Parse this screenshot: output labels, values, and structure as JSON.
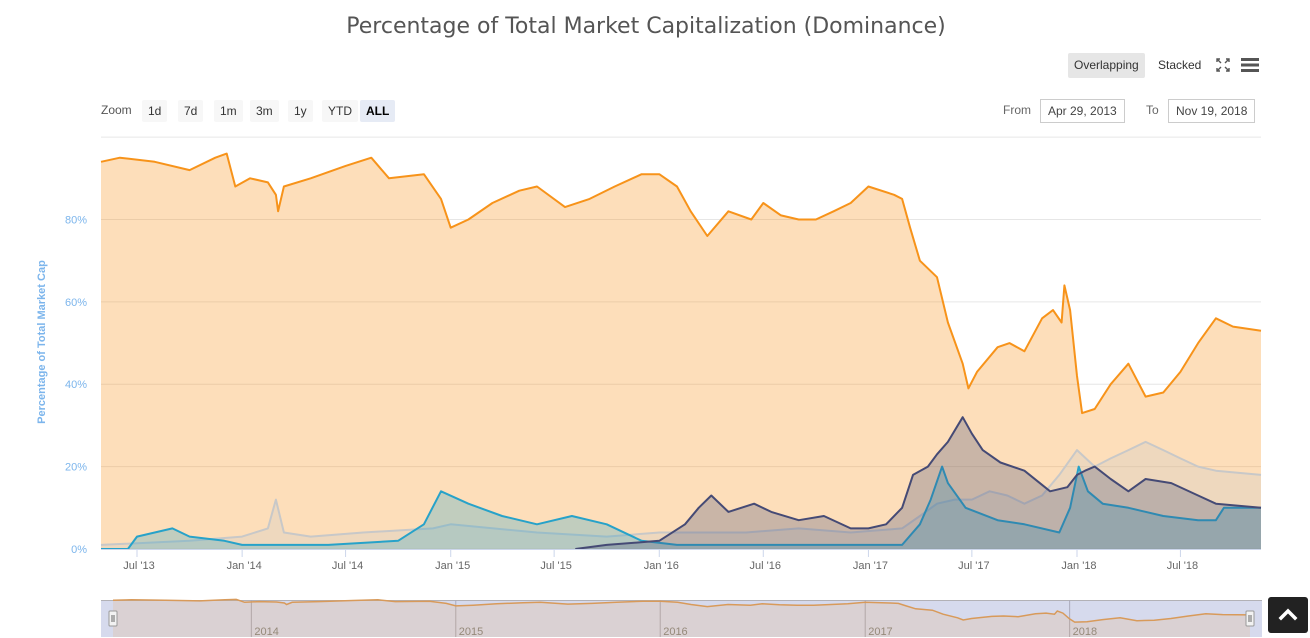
{
  "header": {
    "title": "Percentage of Total Market Capitalization (Dominance)"
  },
  "mode_buttons": [
    {
      "label": "Overlapping",
      "active": true
    },
    {
      "label": "Stacked",
      "active": false
    }
  ],
  "icons": {
    "fullscreen": "fullscreen-icon",
    "menu": "hamburger-menu-icon",
    "scroll_top": "chevron-up-icon"
  },
  "zoom": {
    "label": "Zoom",
    "buttons": [
      {
        "label": "1d",
        "active": false
      },
      {
        "label": "7d",
        "active": false
      },
      {
        "label": "1m",
        "active": false
      },
      {
        "label": "3m",
        "active": false
      },
      {
        "label": "1y",
        "active": false
      },
      {
        "label": "YTD",
        "active": false
      },
      {
        "label": "ALL",
        "active": true
      }
    ]
  },
  "range": {
    "from_label": "From",
    "from_value": "Apr 29, 2013",
    "to_label": "To",
    "to_value": "Nov 19, 2018"
  },
  "colors": {
    "bitcoin": "#f7931a",
    "ethereum": "#454a75",
    "ripple": "#27a2c9",
    "others": "#c8c8c8",
    "axis_label": "#7cb5ec",
    "navigator_fill": "#c5cbe5"
  },
  "chart_data": {
    "type": "area",
    "title": "Percentage of Total Market Capitalization (Dominance)",
    "ylabel": "Percentage of Total Market Cap",
    "xlabel": "",
    "ylim": [
      0,
      100
    ],
    "yticks": [
      "0%",
      "20%",
      "40%",
      "60%",
      "80%"
    ],
    "xticks": [
      "Jul '13",
      "Jan '14",
      "Jul '14",
      "Jan '15",
      "Jul '15",
      "Jan '16",
      "Jul '16",
      "Jan '17",
      "Jul '17",
      "Jan '18",
      "Jul '18"
    ],
    "navigator_labels": [
      "2014",
      "2015",
      "2016",
      "2017",
      "2018"
    ],
    "grid": true,
    "legend": "none",
    "x_start": "2013-04-29",
    "x_end": "2018-11-19",
    "series": [
      {
        "key": "bitcoin",
        "points": [
          [
            "2013-04-29",
            94
          ],
          [
            "2013-06-01",
            95
          ],
          [
            "2013-08-01",
            94
          ],
          [
            "2013-10-01",
            92
          ],
          [
            "2013-11-15",
            95
          ],
          [
            "2013-12-05",
            96
          ],
          [
            "2013-12-20",
            88
          ],
          [
            "2014-01-15",
            90
          ],
          [
            "2014-02-15",
            89
          ],
          [
            "2014-03-01",
            86
          ],
          [
            "2014-03-05",
            82
          ],
          [
            "2014-03-15",
            88
          ],
          [
            "2014-05-01",
            90
          ],
          [
            "2014-07-01",
            93
          ],
          [
            "2014-08-15",
            95
          ],
          [
            "2014-09-15",
            90
          ],
          [
            "2014-11-15",
            91
          ],
          [
            "2014-12-15",
            85
          ],
          [
            "2015-01-01",
            78
          ],
          [
            "2015-02-01",
            80
          ],
          [
            "2015-03-15",
            84
          ],
          [
            "2015-05-01",
            87
          ],
          [
            "2015-06-01",
            88
          ],
          [
            "2015-07-20",
            83
          ],
          [
            "2015-09-01",
            85
          ],
          [
            "2015-10-15",
            88
          ],
          [
            "2015-12-01",
            91
          ],
          [
            "2016-01-01",
            91
          ],
          [
            "2016-02-01",
            88
          ],
          [
            "2016-02-25",
            82
          ],
          [
            "2016-03-25",
            76
          ],
          [
            "2016-05-01",
            82
          ],
          [
            "2016-06-10",
            80
          ],
          [
            "2016-07-01",
            84
          ],
          [
            "2016-08-01",
            81
          ],
          [
            "2016-09-01",
            80
          ],
          [
            "2016-10-01",
            80
          ],
          [
            "2016-11-01",
            82
          ],
          [
            "2016-12-01",
            84
          ],
          [
            "2017-01-01",
            88
          ],
          [
            "2017-02-15",
            86
          ],
          [
            "2017-03-01",
            85
          ],
          [
            "2017-03-15",
            78
          ],
          [
            "2017-04-01",
            70
          ],
          [
            "2017-05-01",
            66
          ],
          [
            "2017-05-20",
            55
          ],
          [
            "2017-06-15",
            45
          ],
          [
            "2017-06-25",
            39
          ],
          [
            "2017-07-10",
            43
          ],
          [
            "2017-08-15",
            49
          ],
          [
            "2017-09-05",
            50
          ],
          [
            "2017-10-01",
            48
          ],
          [
            "2017-11-01",
            56
          ],
          [
            "2017-11-20",
            58
          ],
          [
            "2017-12-05",
            55
          ],
          [
            "2017-12-10",
            64
          ],
          [
            "2017-12-20",
            58
          ],
          [
            "2018-01-01",
            42
          ],
          [
            "2018-01-10",
            33
          ],
          [
            "2018-02-01",
            34
          ],
          [
            "2018-03-01",
            40
          ],
          [
            "2018-04-01",
            45
          ],
          [
            "2018-05-01",
            37
          ],
          [
            "2018-06-01",
            38
          ],
          [
            "2018-07-01",
            43
          ],
          [
            "2018-08-01",
            50
          ],
          [
            "2018-09-01",
            56
          ],
          [
            "2018-10-01",
            54
          ],
          [
            "2018-11-19",
            53
          ]
        ]
      },
      {
        "key": "others",
        "points": [
          [
            "2013-04-29",
            1
          ],
          [
            "2013-10-01",
            2
          ],
          [
            "2014-01-01",
            3
          ],
          [
            "2014-02-15",
            5
          ],
          [
            "2014-03-01",
            12
          ],
          [
            "2014-03-15",
            4
          ],
          [
            "2014-05-01",
            3
          ],
          [
            "2014-08-01",
            4
          ],
          [
            "2014-12-01",
            5
          ],
          [
            "2015-01-01",
            6
          ],
          [
            "2015-06-01",
            4
          ],
          [
            "2015-10-01",
            3
          ],
          [
            "2016-01-01",
            4
          ],
          [
            "2016-06-01",
            4
          ],
          [
            "2016-09-01",
            5
          ],
          [
            "2016-12-01",
            4
          ],
          [
            "2017-03-01",
            5
          ],
          [
            "2017-04-01",
            8
          ],
          [
            "2017-05-01",
            11
          ],
          [
            "2017-06-01",
            12
          ],
          [
            "2017-07-01",
            12
          ],
          [
            "2017-08-01",
            14
          ],
          [
            "2017-09-01",
            13
          ],
          [
            "2017-10-01",
            11
          ],
          [
            "2017-11-01",
            13
          ],
          [
            "2017-12-01",
            18
          ],
          [
            "2018-01-01",
            24
          ],
          [
            "2018-02-01",
            20
          ],
          [
            "2018-03-01",
            22
          ],
          [
            "2018-04-01",
            24
          ],
          [
            "2018-05-01",
            26
          ],
          [
            "2018-06-01",
            24
          ],
          [
            "2018-07-01",
            22
          ],
          [
            "2018-08-01",
            20
          ],
          [
            "2018-09-01",
            19
          ],
          [
            "2018-11-19",
            18
          ]
        ]
      },
      {
        "key": "ripple",
        "points": [
          [
            "2013-04-29",
            0
          ],
          [
            "2013-06-15",
            0
          ],
          [
            "2013-07-01",
            3
          ],
          [
            "2013-09-01",
            5
          ],
          [
            "2013-10-01",
            3
          ],
          [
            "2013-12-01",
            2
          ],
          [
            "2014-01-01",
            1
          ],
          [
            "2014-06-01",
            1
          ],
          [
            "2014-10-01",
            2
          ],
          [
            "2014-11-15",
            6
          ],
          [
            "2014-12-15",
            14
          ],
          [
            "2015-02-01",
            11
          ],
          [
            "2015-04-01",
            8
          ],
          [
            "2015-06-01",
            6
          ],
          [
            "2015-08-01",
            8
          ],
          [
            "2015-10-01",
            6
          ],
          [
            "2015-12-01",
            2
          ],
          [
            "2016-02-01",
            1
          ],
          [
            "2016-06-01",
            1
          ],
          [
            "2016-12-01",
            1
          ],
          [
            "2017-03-01",
            1
          ],
          [
            "2017-04-01",
            6
          ],
          [
            "2017-04-20",
            12
          ],
          [
            "2017-05-10",
            20
          ],
          [
            "2017-05-20",
            16
          ],
          [
            "2017-06-20",
            10
          ],
          [
            "2017-08-15",
            7
          ],
          [
            "2017-10-01",
            6
          ],
          [
            "2017-12-01",
            4
          ],
          [
            "2017-12-20",
            10
          ],
          [
            "2018-01-04",
            20
          ],
          [
            "2018-01-20",
            14
          ],
          [
            "2018-02-15",
            11
          ],
          [
            "2018-04-01",
            10
          ],
          [
            "2018-06-01",
            8
          ],
          [
            "2018-08-01",
            7
          ],
          [
            "2018-09-01",
            7
          ],
          [
            "2018-09-15",
            10
          ],
          [
            "2018-11-19",
            10
          ]
        ]
      },
      {
        "key": "ethereum",
        "points": [
          [
            "2015-08-07",
            0
          ],
          [
            "2015-10-01",
            1
          ],
          [
            "2016-01-01",
            2
          ],
          [
            "2016-02-15",
            6
          ],
          [
            "2016-03-10",
            10
          ],
          [
            "2016-04-01",
            13
          ],
          [
            "2016-05-01",
            9
          ],
          [
            "2016-06-15",
            11
          ],
          [
            "2016-07-15",
            9
          ],
          [
            "2016-09-01",
            7
          ],
          [
            "2016-10-15",
            8
          ],
          [
            "2016-12-01",
            5
          ],
          [
            "2017-01-01",
            5
          ],
          [
            "2017-02-01",
            6
          ],
          [
            "2017-03-01",
            10
          ],
          [
            "2017-03-20",
            18
          ],
          [
            "2017-04-15",
            20
          ],
          [
            "2017-05-01",
            23
          ],
          [
            "2017-05-20",
            26
          ],
          [
            "2017-06-15",
            32
          ],
          [
            "2017-07-01",
            28
          ],
          [
            "2017-07-20",
            24
          ],
          [
            "2017-08-20",
            21
          ],
          [
            "2017-10-01",
            19
          ],
          [
            "2017-11-15",
            14
          ],
          [
            "2017-12-15",
            15
          ],
          [
            "2018-01-01",
            18
          ],
          [
            "2018-01-15",
            19
          ],
          [
            "2018-02-01",
            20
          ],
          [
            "2018-03-01",
            17
          ],
          [
            "2018-04-01",
            14
          ],
          [
            "2018-05-01",
            17
          ],
          [
            "2018-06-15",
            16
          ],
          [
            "2018-08-01",
            13
          ],
          [
            "2018-09-01",
            11
          ],
          [
            "2018-11-19",
            10
          ]
        ]
      }
    ]
  }
}
